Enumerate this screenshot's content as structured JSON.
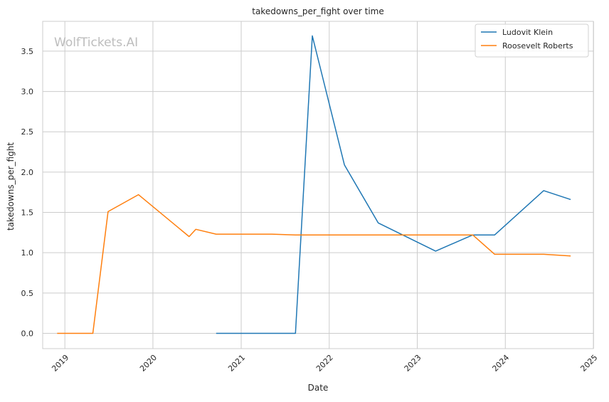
{
  "chart_data": {
    "type": "line",
    "title": "takedowns_per_fight over time",
    "xlabel": "Date",
    "ylabel": "takedowns_per_fight",
    "watermark": "WolfTickets.AI",
    "x_axis": {
      "type": "date",
      "range": [
        "2018-10-01",
        "2024-12-31"
      ],
      "ticks": [
        {
          "date": "2019-01-01",
          "label": "2019"
        },
        {
          "date": "2020-01-01",
          "label": "2020"
        },
        {
          "date": "2021-01-01",
          "label": "2021"
        },
        {
          "date": "2022-01-01",
          "label": "2022"
        },
        {
          "date": "2023-01-01",
          "label": "2023"
        },
        {
          "date": "2024-01-01",
          "label": "2024"
        },
        {
          "date": "2025-01-01",
          "label": "2025"
        }
      ],
      "tick_label_rotation": -45
    },
    "y_axis": {
      "range": [
        -0.19,
        3.87
      ],
      "ticks": [
        0.0,
        0.5,
        1.0,
        1.5,
        2.0,
        2.5,
        3.0,
        3.5
      ],
      "tick_labels": [
        "0.0",
        "0.5",
        "1.0",
        "1.5",
        "2.0",
        "2.5",
        "3.0",
        "3.5"
      ]
    },
    "grid": true,
    "legend": {
      "position": "top-right"
    },
    "series": [
      {
        "name": "Ludovit Klein",
        "color": "#1f77b4",
        "points": [
          {
            "x": "2020-09-19",
            "y": 0.0
          },
          {
            "x": "2021-08-14",
            "y": 0.0
          },
          {
            "x": "2021-10-23",
            "y": 3.69
          },
          {
            "x": "2022-03-05",
            "y": 2.09
          },
          {
            "x": "2022-07-23",
            "y": 1.37
          },
          {
            "x": "2023-03-18",
            "y": 1.02
          },
          {
            "x": "2023-08-19",
            "y": 1.22
          },
          {
            "x": "2023-11-18",
            "y": 1.22
          },
          {
            "x": "2024-06-08",
            "y": 1.77
          },
          {
            "x": "2024-09-28",
            "y": 1.66
          }
        ]
      },
      {
        "name": "Roosevelt Roberts",
        "color": "#ff7f0e",
        "points": [
          {
            "x": "2018-11-30",
            "y": 0.0
          },
          {
            "x": "2019-04-27",
            "y": 0.0
          },
          {
            "x": "2019-06-29",
            "y": 1.51
          },
          {
            "x": "2019-11-02",
            "y": 1.72
          },
          {
            "x": "2020-05-30",
            "y": 1.2
          },
          {
            "x": "2020-06-27",
            "y": 1.29
          },
          {
            "x": "2020-09-19",
            "y": 1.23
          },
          {
            "x": "2021-05-08",
            "y": 1.23
          },
          {
            "x": "2021-08-14",
            "y": 1.22
          },
          {
            "x": "2023-08-19",
            "y": 1.22
          },
          {
            "x": "2023-11-18",
            "y": 0.98
          },
          {
            "x": "2024-06-08",
            "y": 0.98
          },
          {
            "x": "2024-09-28",
            "y": 0.96
          }
        ]
      }
    ]
  }
}
